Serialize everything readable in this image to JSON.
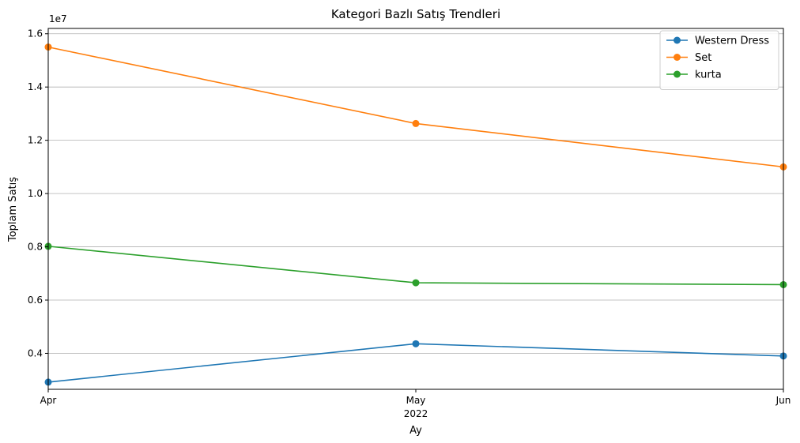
{
  "chart_data": {
    "type": "line",
    "title": "Kategori Bazlı Satış Trendleri",
    "xlabel": "Ay",
    "ylabel": "Toplam Satış",
    "y_offset_label": "1e7",
    "categories": [
      "Apr",
      "May",
      "Jun"
    ],
    "x_sublabel": "2022",
    "y_scale": 10000000,
    "ylim": [
      2.65,
      16.2
    ],
    "yticks": [
      {
        "value": 4,
        "label": "0.4"
      },
      {
        "value": 6,
        "label": "0.6"
      },
      {
        "value": 8,
        "label": "0.8"
      },
      {
        "value": 10,
        "label": "1.0"
      },
      {
        "value": 12,
        "label": "1.2"
      },
      {
        "value": 14,
        "label": "1.4"
      },
      {
        "value": 16,
        "label": "1.6"
      }
    ],
    "grid": "y",
    "legend_position": "top-right",
    "series": [
      {
        "name": "Western Dress",
        "color": "#1f77b4",
        "values": [
          2.92,
          4.36,
          3.9
        ]
      },
      {
        "name": "Set",
        "color": "#ff7f0e",
        "values": [
          15.5,
          12.63,
          11.0
        ]
      },
      {
        "name": "kurta",
        "color": "#2ca02c",
        "values": [
          8.02,
          6.65,
          6.58
        ]
      }
    ]
  }
}
